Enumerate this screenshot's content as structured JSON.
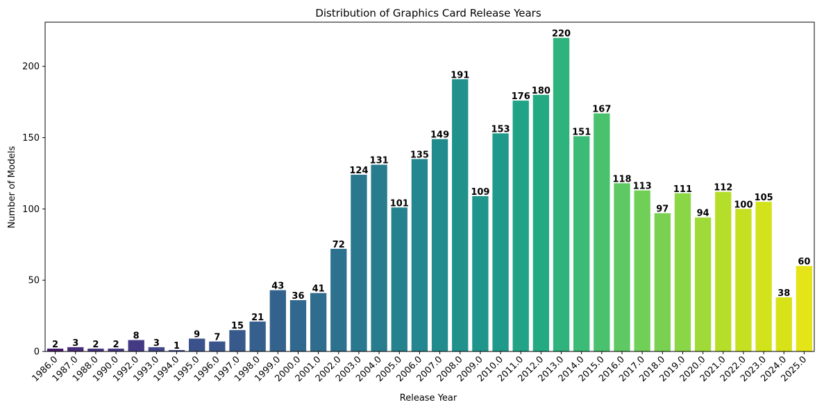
{
  "chart_data": {
    "type": "bar",
    "title": "Distribution of Graphics Card Release Years",
    "xlabel": "Release Year",
    "ylabel": "Number of Models",
    "ylim": [
      0,
      231
    ],
    "yticks": [
      0,
      50,
      100,
      150,
      200
    ],
    "grid": false,
    "palette": "viridis",
    "categories": [
      "1986.0",
      "1987.0",
      "1988.0",
      "1990.0",
      "1992.0",
      "1993.0",
      "1994.0",
      "1995.0",
      "1996.0",
      "1997.0",
      "1998.0",
      "1999.0",
      "2000.0",
      "2001.0",
      "2002.0",
      "2003.0",
      "2004.0",
      "2005.0",
      "2006.0",
      "2007.0",
      "2008.0",
      "2009.0",
      "2010.0",
      "2011.0",
      "2012.0",
      "2013.0",
      "2014.0",
      "2015.0",
      "2016.0",
      "2017.0",
      "2018.0",
      "2019.0",
      "2020.0",
      "2021.0",
      "2022.0",
      "2023.0",
      "2024.0",
      "2025.0"
    ],
    "values": [
      2,
      3,
      2,
      2,
      8,
      3,
      1,
      9,
      7,
      15,
      21,
      43,
      36,
      41,
      72,
      124,
      131,
      101,
      135,
      149,
      191,
      109,
      153,
      176,
      180,
      220,
      151,
      167,
      118,
      113,
      97,
      111,
      94,
      112,
      100,
      105,
      38,
      60
    ],
    "colors": [
      "#481a6c",
      "#472c7a",
      "#46337f",
      "#453882",
      "#443a83",
      "#404688",
      "#3e4989",
      "#3b518b",
      "#3a548c",
      "#38598c",
      "#355f8d",
      "#33638d",
      "#31688e",
      "#2f6c8e",
      "#2c728e",
      "#2a788e",
      "#287c8e",
      "#26818e",
      "#24868e",
      "#228b8d",
      "#21918c",
      "#1f958b",
      "#1f9a8a",
      "#20a386",
      "#24aa83",
      "#2eb37c",
      "#3bbb75",
      "#4ac16d",
      "#5ec962",
      "#70cf57",
      "#7ad151",
      "#8bd646",
      "#a0da39",
      "#b5de2b",
      "#c5e021",
      "#d2e21b",
      "#d8e219",
      "#e5e419"
    ]
  }
}
